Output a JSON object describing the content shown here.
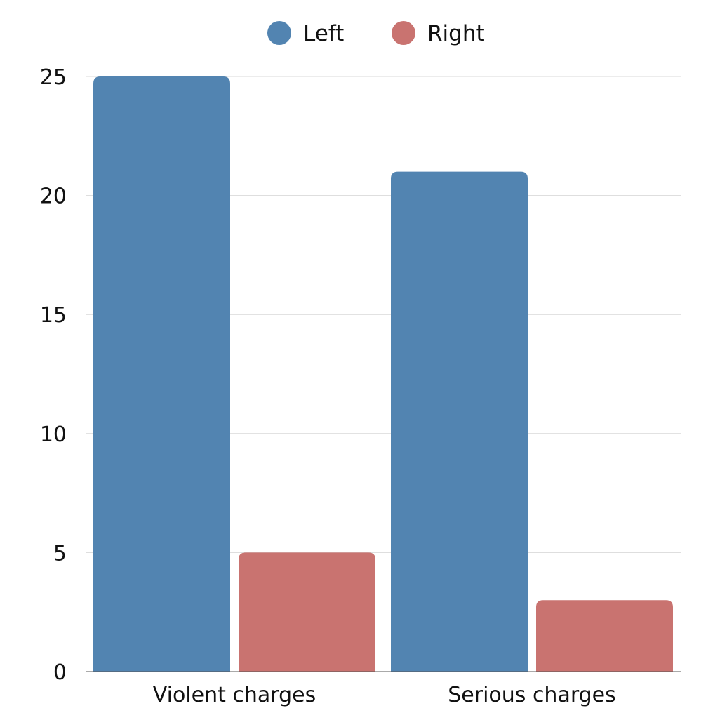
{
  "chart_data": {
    "type": "bar",
    "title": "",
    "xlabel": "",
    "ylabel": "",
    "categories": [
      "Violent charges",
      "Serious charges"
    ],
    "series": [
      {
        "name": "Left",
        "values": [
          25,
          21
        ],
        "color": "#5284b1"
      },
      {
        "name": "Right",
        "values": [
          5,
          3
        ],
        "color": "#c97370"
      }
    ],
    "ylim": [
      0,
      25
    ],
    "yticks": [
      "0",
      "5",
      "10",
      "15",
      "20",
      "25"
    ],
    "grid": true,
    "legend": "top-center"
  }
}
